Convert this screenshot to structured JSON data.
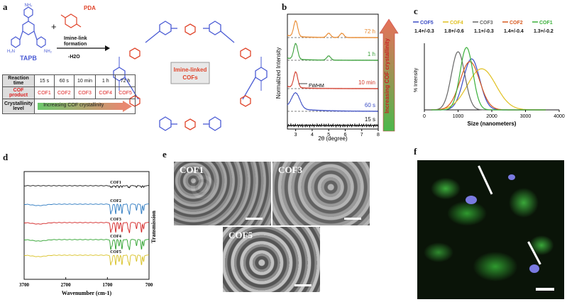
{
  "panels": {
    "a": "a",
    "b": "b",
    "c": "c",
    "d": "d",
    "e": "e",
    "f": "f"
  },
  "panel_a": {
    "tapb_label": "TAPB",
    "pda_label": "PDA",
    "plus": "+",
    "amine_nh2": "NH₂",
    "amine_h2n": "H₂N",
    "arrow_top1": "Imine-link",
    "arrow_top2": "formation",
    "arrow_bottom": "-H2O",
    "center_label_line1": "Imine-linked",
    "center_label_line2": "COFs",
    "table_headers": [
      "Reaction time",
      "COF product",
      "Crystallinity level"
    ],
    "times": [
      "15 s",
      "60 s",
      "10 min",
      "1 h",
      "72 h"
    ],
    "products": [
      "COF1",
      "COF2",
      "COF3",
      "COF4",
      "COF5"
    ],
    "crystallinity_arrow": "Increasing COF crystallinity",
    "colors": {
      "tapb": "#4a5bd4",
      "pda": "#e0442a",
      "arrow": "#5ac05a"
    }
  },
  "panel_b": {
    "ylabel": "Normalized Intensity",
    "xlabel": "2θ (degree)",
    "xticks": [
      "3",
      "4",
      "5",
      "6",
      "7",
      "8"
    ],
    "side_arrow": "Increasing COF crystallinity",
    "fwhm": "FWHM",
    "curve_labels": [
      "72 h",
      "1 h",
      "10 min",
      "60 s",
      "15 s"
    ],
    "curve_colors": [
      "#e8882c",
      "#3aa03a",
      "#d23a2a",
      "#3a4cc4",
      "#111111"
    ]
  },
  "panel_c": {
    "ylabel": "% Intensity",
    "xlabel": "Size (nanometers)",
    "xticks": [
      "0",
      "1000",
      "2000",
      "3000",
      "4000"
    ],
    "legend": [
      {
        "name": "COF5",
        "value": "1.4+/-0.3",
        "color": "#3a4cc4"
      },
      {
        "name": "COF4",
        "value": "1.8+/-0.6",
        "color": "#e0c020"
      },
      {
        "name": "COF3",
        "value": "1.1+/-0.3",
        "color": "#666666"
      },
      {
        "name": "COF2",
        "value": "1.4+/-0.4",
        "color": "#d85a20"
      },
      {
        "name": "COF1",
        "value": "1.3+/-0.2",
        "color": "#3ab03a"
      }
    ]
  },
  "panel_d": {
    "xlabel": "Wavenumber (cm-1)",
    "ylabel": "Transmission",
    "xticks": [
      "3700",
      "2700",
      "1700",
      "700"
    ],
    "traces": [
      {
        "name": "COF1",
        "color": "#111111"
      },
      {
        "name": "COF2",
        "color": "#2a78c0"
      },
      {
        "name": "COF3",
        "color": "#d22020"
      },
      {
        "name": "COF4",
        "color": "#2aa02a"
      },
      {
        "name": "COF5",
        "color": "#d8c020"
      }
    ]
  },
  "panel_e": {
    "images": [
      "COF1",
      "COF3",
      "COF5"
    ]
  },
  "chart_data": [
    {
      "type": "line",
      "xlabel": "2θ (degree)",
      "ylabel": "Normalized Intensity",
      "x_range": [
        2.5,
        8
      ],
      "series": [
        {
          "name": "72 h",
          "peaks": [
            3.0,
            5.0,
            5.8
          ]
        },
        {
          "name": "1 h",
          "peaks": [
            3.0,
            5.0
          ]
        },
        {
          "name": "10 min",
          "peaks": [
            3.0
          ]
        },
        {
          "name": "60 s",
          "peaks": [
            3.0
          ]
        },
        {
          "name": "15 s",
          "peaks": []
        }
      ]
    },
    {
      "type": "line",
      "xlabel": "Size (nanometers)",
      "ylabel": "% Intensity",
      "x_range": [
        0,
        4000
      ],
      "series": [
        {
          "name": "COF5",
          "peak_x": 1400
        },
        {
          "name": "COF4",
          "peak_x": 1700
        },
        {
          "name": "COF3",
          "peak_x": 1000
        },
        {
          "name": "COF2",
          "peak_x": 1350
        },
        {
          "name": "COF1",
          "peak_x": 1250
        }
      ]
    },
    {
      "type": "line",
      "xlabel": "Wavenumber (cm-1)",
      "ylabel": "Transmission",
      "x_range": [
        3700,
        700
      ],
      "series": [
        {
          "name": "COF1"
        },
        {
          "name": "COF2"
        },
        {
          "name": "COF3"
        },
        {
          "name": "COF4"
        },
        {
          "name": "COF5"
        }
      ]
    }
  ]
}
